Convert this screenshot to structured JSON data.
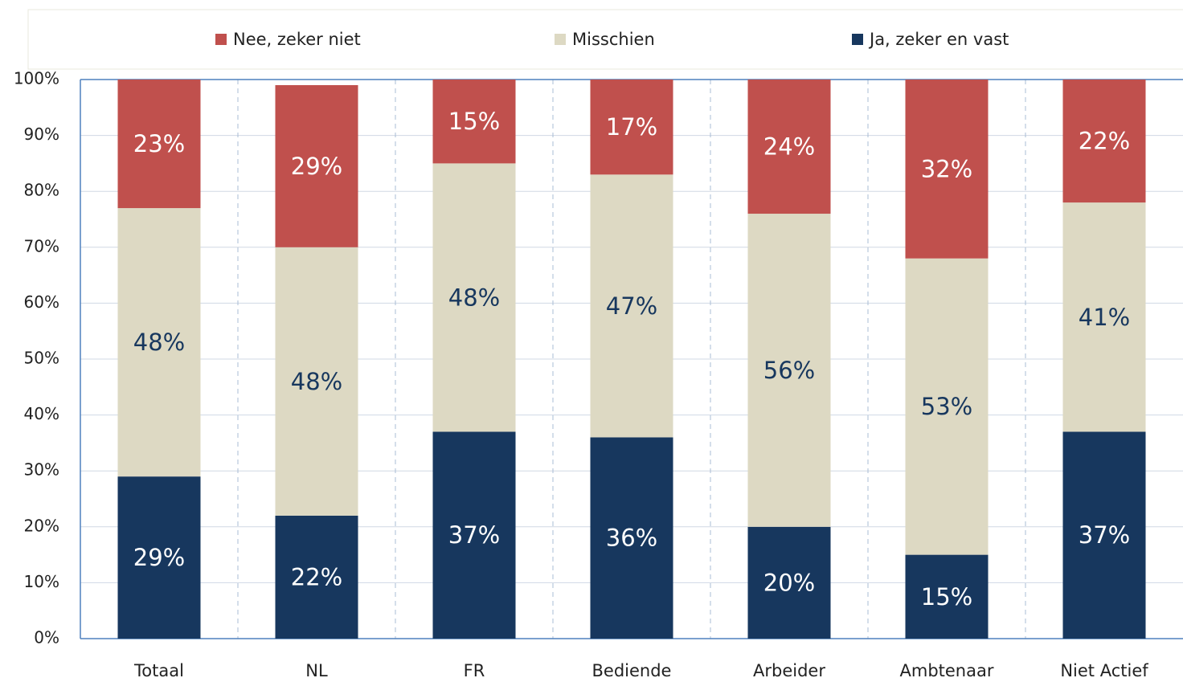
{
  "chart_data": {
    "type": "stacked_bar",
    "categories": [
      "Totaal",
      "NL",
      "FR",
      "Bediende",
      "Arbeider",
      "Ambtenaar",
      "Niet Actief"
    ],
    "series": [
      {
        "name": "Nee, zeker niet",
        "color": "#c0504d",
        "values": [
          23,
          29,
          15,
          17,
          24,
          32,
          22
        ],
        "value_labels": [
          "23%",
          "29%",
          "15%",
          "17%",
          "24%",
          "32%",
          "22%"
        ]
      },
      {
        "name": "Misschien",
        "color": "#ddd9c3",
        "values": [
          48,
          48,
          48,
          47,
          56,
          53,
          41
        ],
        "value_labels": [
          "48%",
          "48%",
          "48%",
          "47%",
          "56%",
          "53%",
          "41%"
        ]
      },
      {
        "name": "Ja, zeker en vast",
        "color": "#17375e",
        "values": [
          29,
          22,
          37,
          36,
          20,
          15,
          37
        ],
        "value_labels": [
          "29%",
          "22%",
          "37%",
          "36%",
          "20%",
          "15%",
          "37%"
        ]
      }
    ],
    "ylim": [
      0,
      100
    ],
    "yticks": [
      {
        "value": 0,
        "label": "0%"
      },
      {
        "value": 10,
        "label": "10%"
      },
      {
        "value": 20,
        "label": "20%"
      },
      {
        "value": 30,
        "label": "30%"
      },
      {
        "value": 40,
        "label": "40%"
      },
      {
        "value": 50,
        "label": "50%"
      },
      {
        "value": 60,
        "label": "60%"
      },
      {
        "value": 70,
        "label": "70%"
      },
      {
        "value": 80,
        "label": "80%"
      },
      {
        "value": 90,
        "label": "90%"
      },
      {
        "value": 100,
        "label": "100%"
      }
    ],
    "grid": true,
    "legend": "top"
  }
}
